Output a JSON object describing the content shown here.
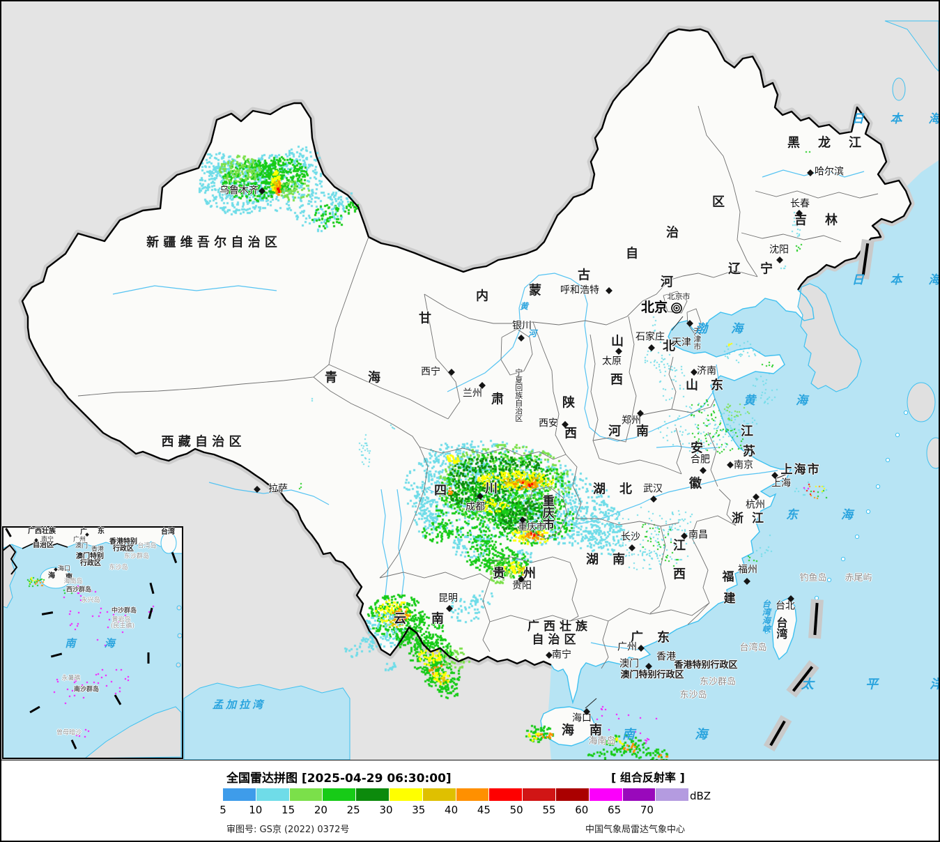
{
  "legend": {
    "title": "全国雷达拼图 [2025-04-29 06:30:00]",
    "product": "[ 组合反射率 ]",
    "unit": "dBZ",
    "approval": "审图号: GS京 (2022) 0372号",
    "credit": "中国气象局雷达气象中心",
    "scale": {
      "ticks": [
        "5",
        "10",
        "15",
        "20",
        "25",
        "30",
        "35",
        "40",
        "45",
        "50",
        "55",
        "60",
        "65",
        "70"
      ],
      "colors": [
        "#3E9CEA",
        "#6FDCE8",
        "#7BE04A",
        "#17CB17",
        "#0C8A0C",
        "#FFFF00",
        "#DFC000",
        "#FF9000",
        "#FE0000",
        "#D11515",
        "#AA0000",
        "#FB00FB",
        "#9909BB",
        "#B49BE0"
      ]
    }
  },
  "map": {
    "provinces": [
      {
        "id": "xinjiang",
        "text": "新 疆 维 吾 尔 自 治 区"
      },
      {
        "id": "xizang",
        "text": "西 藏 自 治 区"
      },
      {
        "id": "qinghai",
        "text": "青海"
      },
      {
        "id": "gan",
        "text": "甘"
      },
      {
        "id": "su",
        "text": "肃"
      },
      {
        "id": "nei",
        "text": "内"
      },
      {
        "id": "meng",
        "text": "蒙"
      },
      {
        "id": "gu",
        "text": "古"
      },
      {
        "id": "zi",
        "text": "自"
      },
      {
        "id": "zhi",
        "text": "治"
      },
      {
        "id": "qu",
        "text": "区"
      },
      {
        "id": "ningxia",
        "text": "宁夏回族自治区"
      },
      {
        "id": "shan3",
        "text": "陕"
      },
      {
        "id": "xi3",
        "text": "西"
      },
      {
        "id": "shan1",
        "text": "山"
      },
      {
        "id": "xi1",
        "text": "西"
      },
      {
        "id": "he2",
        "text": "河"
      },
      {
        "id": "bei2",
        "text": "北"
      },
      {
        "id": "shandong",
        "text": "山东"
      },
      {
        "id": "henan",
        "text": "河南"
      },
      {
        "id": "jiang1",
        "text": "江"
      },
      {
        "id": "su1",
        "text": "苏"
      },
      {
        "id": "an",
        "text": "安"
      },
      {
        "id": "hui",
        "text": "徽"
      },
      {
        "id": "hubei",
        "text": "湖北"
      },
      {
        "id": "hunan",
        "text": "湖南"
      },
      {
        "id": "jiang2",
        "text": "江"
      },
      {
        "id": "xi2",
        "text": "西"
      },
      {
        "id": "zhejiang",
        "text": "浙江"
      },
      {
        "id": "fu",
        "text": "福"
      },
      {
        "id": "jian",
        "text": "建"
      },
      {
        "id": "taiwan",
        "text": "台湾"
      },
      {
        "id": "guangdong",
        "text": "广东"
      },
      {
        "id": "guangxi1",
        "text": "广西壮族"
      },
      {
        "id": "guangxi2",
        "text": "自治区"
      },
      {
        "id": "yunnan",
        "text": "云南"
      },
      {
        "id": "guizhou",
        "text": "贵州"
      },
      {
        "id": "sichuan1",
        "text": "四"
      },
      {
        "id": "sichuan2",
        "text": "川"
      },
      {
        "id": "chongqing_big",
        "text": "重庆市"
      },
      {
        "id": "heilongjiang",
        "text": "黑龙江"
      },
      {
        "id": "jilin",
        "text": "吉林"
      },
      {
        "id": "liaoning",
        "text": "辽宁"
      },
      {
        "id": "hainan_prov",
        "text": "海南"
      },
      {
        "id": "hksar",
        "text": "香港特别行政区"
      },
      {
        "id": "mosar",
        "text": "澳门特别行政区"
      },
      {
        "id": "beijing_city",
        "text": "北京"
      },
      {
        "id": "beijing_shi",
        "text": "北京市"
      },
      {
        "id": "tianjin_shi",
        "text": "天津市"
      },
      {
        "id": "shanghai_shi",
        "text": "上海市"
      }
    ],
    "cities": [
      {
        "id": "urumqi",
        "name": "乌鲁木齐"
      },
      {
        "id": "lasa",
        "name": "拉萨"
      },
      {
        "id": "xining",
        "name": "西宁"
      },
      {
        "id": "lanzhou",
        "name": "兰州"
      },
      {
        "id": "yinchuan",
        "name": "银川"
      },
      {
        "id": "huhehaote",
        "name": "呼和浩特"
      },
      {
        "id": "taiyuan",
        "name": "太原"
      },
      {
        "id": "xian",
        "name": "西安"
      },
      {
        "id": "zhengzhou",
        "name": "郑州"
      },
      {
        "id": "shijiazhuang",
        "name": "石家庄"
      },
      {
        "id": "jinan",
        "name": "济南"
      },
      {
        "id": "nanjing",
        "name": "南京"
      },
      {
        "id": "hefei",
        "name": "合肥"
      },
      {
        "id": "shanghai",
        "name": "上海"
      },
      {
        "id": "hangzhou",
        "name": "杭州"
      },
      {
        "id": "wuhan",
        "name": "武汉"
      },
      {
        "id": "changsha",
        "name": "长沙"
      },
      {
        "id": "nanchang",
        "name": "南昌"
      },
      {
        "id": "fuzhou",
        "name": "福州"
      },
      {
        "id": "taibei",
        "name": "台北"
      },
      {
        "id": "guangzhou",
        "name": "广州"
      },
      {
        "id": "xianggang",
        "name": "香港"
      },
      {
        "id": "aomen",
        "name": "澳门"
      },
      {
        "id": "nanning",
        "name": "南宁"
      },
      {
        "id": "guiyang",
        "name": "贵阳"
      },
      {
        "id": "kunming",
        "name": "昆明"
      },
      {
        "id": "chengdu",
        "name": "成都"
      },
      {
        "id": "chongqing_s",
        "name": "重庆市"
      },
      {
        "id": "haikou",
        "name": "海口"
      },
      {
        "id": "haerbin",
        "name": "哈尔滨"
      },
      {
        "id": "changchun",
        "name": "长春"
      },
      {
        "id": "shenyang",
        "name": "沈阳"
      },
      {
        "id": "tianjin",
        "name": "天津"
      }
    ],
    "capital": {
      "name": "北京",
      "marker": "concentric-circles"
    },
    "seas": [
      {
        "id": "riben1",
        "text": "日 本 海"
      },
      {
        "id": "riben2",
        "text": "日 本 海"
      },
      {
        "id": "bohai",
        "text": "渤 海"
      },
      {
        "id": "huanghai",
        "text": "黄 海"
      },
      {
        "id": "donghai",
        "text": "东 海"
      },
      {
        "id": "nanhai_m",
        "text": "南 海"
      },
      {
        "id": "taipingyang",
        "text": "太 平 洋"
      },
      {
        "id": "menggala",
        "text": "孟加拉湾"
      },
      {
        "id": "twhaixia",
        "text": "台湾海峡"
      },
      {
        "id": "huang_r",
        "text": "黄"
      },
      {
        "id": "he_r",
        "text": "河"
      }
    ],
    "islands": [
      {
        "id": "diaoyu",
        "text": "钓鱼岛"
      },
      {
        "id": "chiwei",
        "text": "赤尾屿"
      },
      {
        "id": "taiwandao",
        "text": "台湾岛"
      },
      {
        "id": "dongsha_qd",
        "text": "东沙群岛"
      },
      {
        "id": "dongshadao",
        "text": "东沙岛"
      },
      {
        "id": "hainandao",
        "text": "海南岛"
      }
    ]
  },
  "inset": {
    "labels": [
      {
        "id": "i_gx1",
        "text": "广西壮族"
      },
      {
        "id": "i_gx2",
        "text": "自治区"
      },
      {
        "id": "i_nanning",
        "text": "南宁"
      },
      {
        "id": "i_guang",
        "text": "广"
      },
      {
        "id": "i_dong",
        "text": "东"
      },
      {
        "id": "i_guangzhou",
        "text": "广州"
      },
      {
        "id": "i_aomen",
        "text": "澳门"
      },
      {
        "id": "i_xg",
        "text": "香港"
      },
      {
        "id": "i_hk1",
        "text": "香港特别"
      },
      {
        "id": "i_hk2",
        "text": "行政区"
      },
      {
        "id": "i_mo1",
        "text": "澳门特别"
      },
      {
        "id": "i_mo2",
        "text": "行政区"
      },
      {
        "id": "i_taiwan",
        "text": "台湾"
      },
      {
        "id": "i_twd",
        "text": "台湾岛"
      },
      {
        "id": "i_ds_qd",
        "text": "东沙群岛"
      },
      {
        "id": "i_dsd",
        "text": "东沙岛"
      },
      {
        "id": "i_haikou",
        "text": "海口"
      },
      {
        "id": "i_hai",
        "text": "海"
      },
      {
        "id": "i_nan",
        "text": "南"
      },
      {
        "id": "i_hnd",
        "text": "海南岛"
      },
      {
        "id": "i_xisha",
        "text": "西沙群岛"
      },
      {
        "id": "i_yongxing",
        "text": "永兴岛"
      },
      {
        "id": "i_zhongsha",
        "text": "中沙群岛"
      },
      {
        "id": "i_huangyan",
        "text": "黄岩岛"
      },
      {
        "id": "i_minzhu",
        "text": "(民主礁)"
      },
      {
        "id": "i_nanhai",
        "text": "南 海"
      },
      {
        "id": "i_yongshu",
        "text": "永暑礁"
      },
      {
        "id": "i_nansha",
        "text": "南沙群岛"
      },
      {
        "id": "i_zengmu",
        "text": "曾母暗沙"
      }
    ]
  },
  "radar_echoes": [
    {
      "region": "北疆乌鲁木齐附近",
      "max_dbz": 45
    },
    {
      "region": "四川盆地-重庆",
      "max_dbz": 50
    },
    {
      "region": "云南",
      "max_dbz": 50
    },
    {
      "region": "贵州",
      "max_dbz": 40
    },
    {
      "region": "海南及周边海区",
      "max_dbz": 45
    },
    {
      "region": "山东-河南零散回波",
      "max_dbz": 35
    },
    {
      "region": "湖南湖北零散回波",
      "max_dbz": 25
    },
    {
      "region": "西藏零散回波",
      "max_dbz": 20
    }
  ]
}
